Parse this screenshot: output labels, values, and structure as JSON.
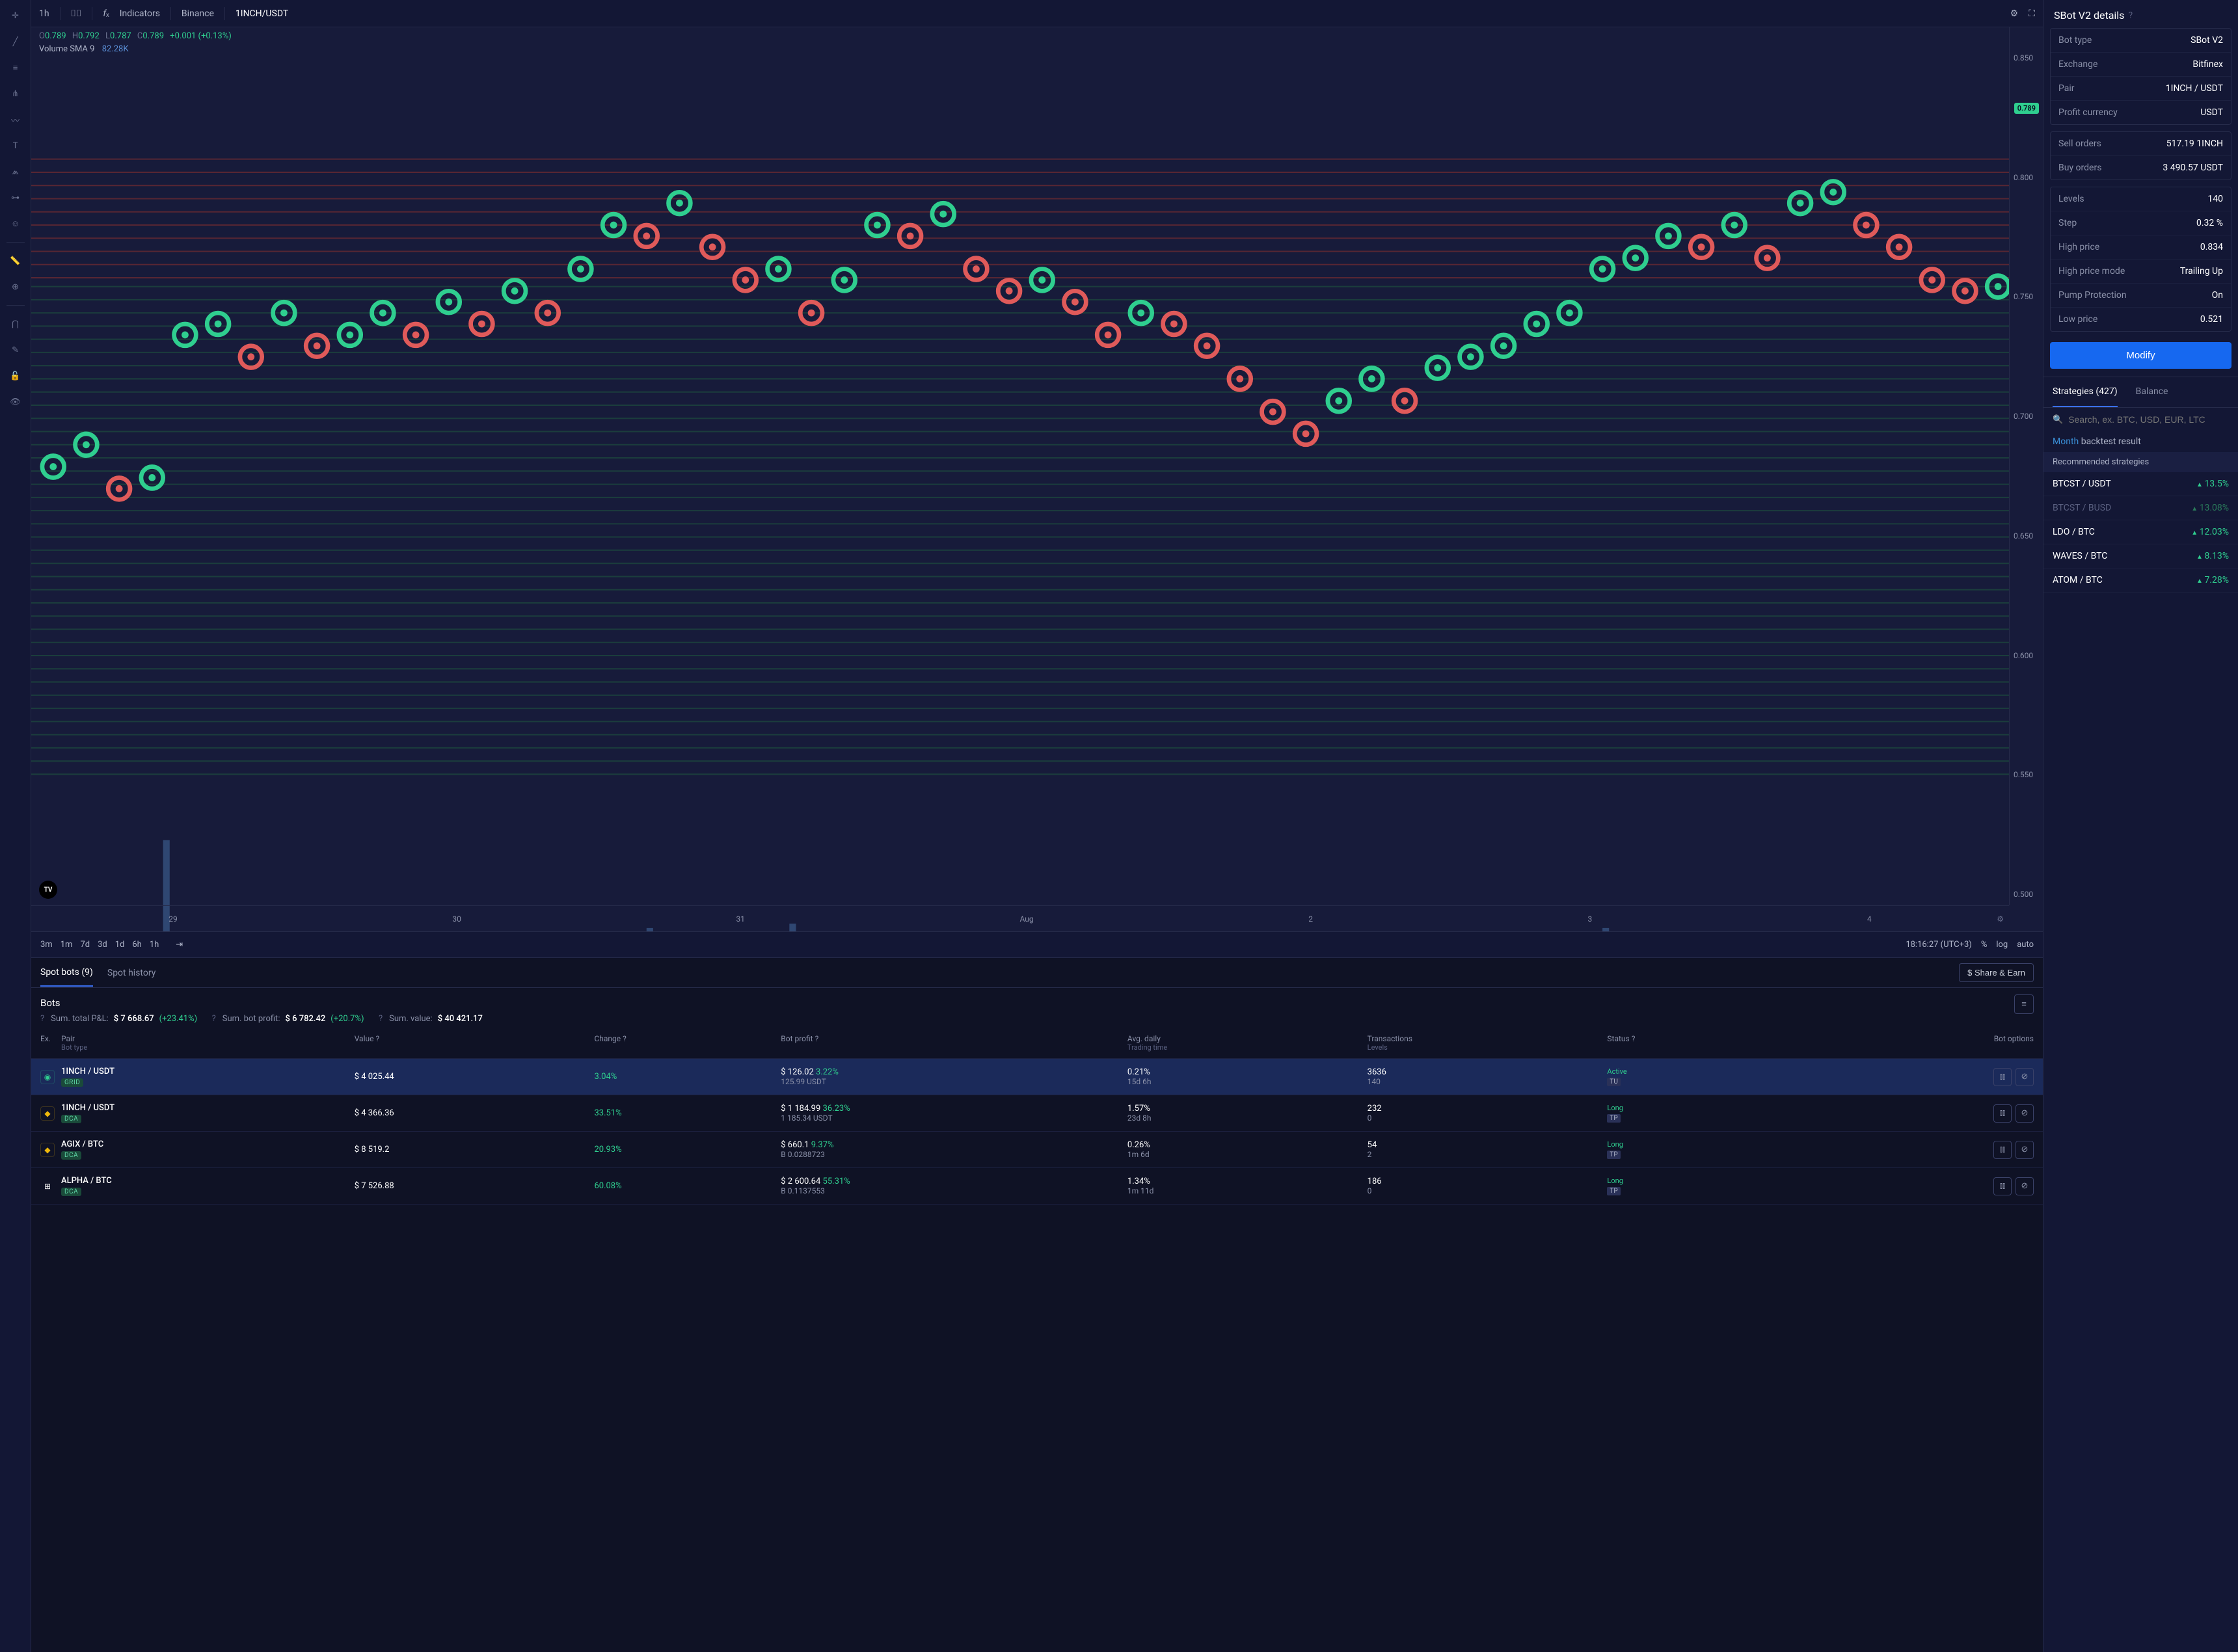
{
  "chart": {
    "toolbar": {
      "timeframe": "1h",
      "indicators_label": "Indicators",
      "exchange": "Binance",
      "pair": "1INCH/USDT"
    },
    "ohlcv": {
      "o_label": "O",
      "o": "0.789",
      "h_label": "H",
      "h": "0.792",
      "l_label": "L",
      "l": "0.787",
      "c_label": "C",
      "c": "0.789",
      "change": "+0.001 (+0.13%)",
      "vol_label": "Volume SMA 9",
      "vol_value": "82.28K"
    },
    "price_tag": "0.789",
    "y_ticks": [
      "0.850",
      "0.800",
      "0.750",
      "0.700",
      "0.650",
      "0.600",
      "0.550",
      "0.500"
    ],
    "x_ticks": [
      "29",
      "30",
      "31",
      "Aug",
      "2",
      "3",
      "4"
    ],
    "tv_badge": "TV",
    "footer": {
      "timeframes": [
        "3m",
        "1m",
        "7d",
        "3d",
        "1d",
        "6h",
        "1h"
      ],
      "clock": "18:16:27 (UTC+3)",
      "pct": "%",
      "log": "log",
      "auto": "auto"
    },
    "colors": {
      "bg": "#171b3a",
      "grid_sell": "#c94a4a",
      "grid_buy": "#2a7a5a",
      "marker_up": "#2fce8f",
      "marker_down": "#e05a5a",
      "volume_bar": "#2a5a8a"
    }
  },
  "bots_panel": {
    "tab_spot": "Spot bots (9)",
    "tab_history": "Spot history",
    "share_btn": "$ Share & Earn",
    "title": "Bots",
    "sum_pnl_label": "Sum. total P&L:",
    "sum_pnl": "$ 7 668.67",
    "sum_pnl_pct": "(+23.41%)",
    "sum_bot_label": "Sum. bot profit:",
    "sum_bot": "$ 6 782.42",
    "sum_bot_pct": "(+20.7%)",
    "sum_val_label": "Sum. value:",
    "sum_val": "$ 40 421.17",
    "headers": {
      "ex": "Ex.",
      "pair": "Pair",
      "pair_sub": "Bot type",
      "value": "Value",
      "change": "Change",
      "bot_profit": "Bot profit",
      "avg": "Avg. daily",
      "avg_sub": "Trading time",
      "tx": "Transactions",
      "tx_sub": "Levels",
      "status": "Status",
      "options": "Bot options"
    },
    "rows": [
      {
        "selected": true,
        "ex_color": "#2fce8f",
        "ex_glyph": "◉",
        "pair": "1INCH / USDT",
        "type": "GRID",
        "value": "$ 4 025.44",
        "change": "3.04%",
        "profit": "$ 126.02",
        "profit_pct": "3.22%",
        "profit_sub": "125.99 USDT",
        "avg": "0.21%",
        "avg_sub": "15d 6h",
        "tx": "3636",
        "tx_sub": "140",
        "status": "Active",
        "status_sub": "TU"
      },
      {
        "selected": false,
        "ex_color": "#f0b90b",
        "ex_glyph": "◆",
        "pair": "1INCH / USDT",
        "type": "DCA",
        "value": "$ 4 366.36",
        "change": "33.51%",
        "profit": "$ 1 184.99",
        "profit_pct": "36.23%",
        "profit_sub": "1 185.34 USDT",
        "avg": "1.57%",
        "avg_sub": "23d 8h",
        "tx": "232",
        "tx_sub": "0",
        "status": "Long",
        "status_sub": "TP"
      },
      {
        "selected": false,
        "ex_color": "#f0b90b",
        "ex_glyph": "◆",
        "pair": "AGIX / BTC",
        "type": "DCA",
        "value": "$ 8 519.2",
        "change": "20.93%",
        "profit": "$ 660.1",
        "profit_pct": "9.37%",
        "profit_sub": "B 0.0288723",
        "avg": "0.26%",
        "avg_sub": "1m 6d",
        "tx": "54",
        "tx_sub": "2",
        "status": "Long",
        "status_sub": "TP"
      },
      {
        "selected": false,
        "ex_color": "#fff",
        "ex_glyph": "⊞",
        "pair": "ALPHA / BTC",
        "type": "DCA",
        "value": "$ 7 526.88",
        "change": "60.08%",
        "profit": "$ 2 600.64",
        "profit_pct": "55.31%",
        "profit_sub": "B 0.1137553",
        "avg": "1.34%",
        "avg_sub": "1m 11d",
        "tx": "186",
        "tx_sub": "0",
        "status": "Long",
        "status_sub": "TP"
      }
    ]
  },
  "details": {
    "title": "SBot V2 details",
    "group1": [
      {
        "k": "Bot type",
        "v": "SBot V2"
      },
      {
        "k": "Exchange",
        "v": "Bitfinex"
      },
      {
        "k": "Pair",
        "v": "1INCH / USDT"
      },
      {
        "k": "Profit currency",
        "v": "USDT"
      }
    ],
    "group2": [
      {
        "k": "Sell orders",
        "v": "517.19 1INCH"
      },
      {
        "k": "Buy orders",
        "v": "3 490.57 USDT"
      }
    ],
    "group3": [
      {
        "k": "Levels",
        "v": "140"
      },
      {
        "k": "Step",
        "v": "0.32 %"
      },
      {
        "k": "High price",
        "v": "0.834"
      },
      {
        "k": "High price mode",
        "v": "Trailing Up"
      },
      {
        "k": "Pump Protection",
        "v": "On"
      },
      {
        "k": "Low price",
        "v": "0.521"
      }
    ],
    "modify": "Modify"
  },
  "strategies": {
    "tab_strat": "Strategies (427)",
    "tab_balance": "Balance",
    "search_placeholder": "Search, ex. BTC, USD, EUR, LTC",
    "backtest_month": "Month",
    "backtest_rest": " backtest result",
    "rec_header": "Recommended strategies",
    "rows": [
      {
        "pair": "BTCST / USDT",
        "pct": "13.5%",
        "dim": false
      },
      {
        "pair": "BTCST / BUSD",
        "pct": "13.08%",
        "dim": true
      },
      {
        "pair": "LDO / BTC",
        "pct": "12.03%",
        "dim": false
      },
      {
        "pair": "WAVES / BTC",
        "pct": "8.13%",
        "dim": false
      },
      {
        "pair": "ATOM / BTC",
        "pct": "7.28%",
        "dim": false
      }
    ]
  }
}
